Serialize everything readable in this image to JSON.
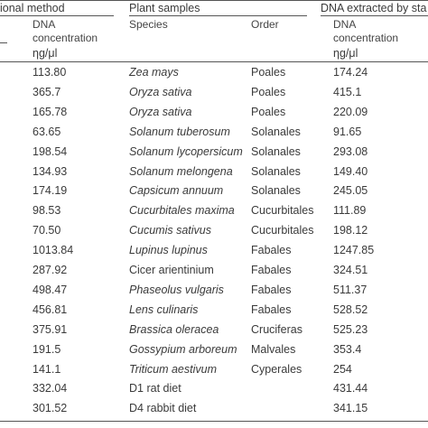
{
  "table": {
    "group_headers": {
      "conventional": "ional method",
      "plant": "Plant samples",
      "stabilized": "DNA extracted by sta"
    },
    "col_headers": {
      "conc_left_line1": "DNA",
      "conc_left_line2": "concentration",
      "species": "Species",
      "order": "Order",
      "conc_right_line1": "DNA",
      "conc_right_line2": "concentration"
    },
    "units": {
      "left": "ηg/μl",
      "right": "ηg/μl"
    },
    "rows": [
      {
        "conc_a": "113.80",
        "species": "Zea mays",
        "italic": true,
        "order": "Poales",
        "conc_b": "174.24"
      },
      {
        "conc_a": "365.7",
        "species": "Oryza sativa",
        "italic": true,
        "order": "Poales",
        "conc_b": "415.1"
      },
      {
        "conc_a": "165.78",
        "species": "Oryza sativa",
        "italic": true,
        "order": "Poales",
        "conc_b": "220.09"
      },
      {
        "conc_a": "63.65",
        "species": "Solanum tuberosum",
        "italic": true,
        "order": "Solanales",
        "conc_b": "91.65"
      },
      {
        "conc_a": "198.54",
        "species": "Solanum lycopersicum",
        "italic": true,
        "order": "Solanales",
        "conc_b": "293.08"
      },
      {
        "conc_a": "134.93",
        "species": "Solanum melongena",
        "italic": true,
        "order": "Solanales",
        "conc_b": "149.40"
      },
      {
        "conc_a": "174.19",
        "species": "Capsicum annuum",
        "italic": true,
        "order": "Solanales",
        "conc_b": "245.05"
      },
      {
        "conc_a": "98.53",
        "species": "Cucurbitales maxima",
        "italic": true,
        "order": "Cucurbitales",
        "conc_b": "111.89"
      },
      {
        "conc_a": "70.50",
        "species": "Cucumis sativus",
        "italic": true,
        "order": "Cucurbitales",
        "conc_b": "198.12"
      },
      {
        "conc_a": "1013.84",
        "species": "Lupinus lupinus",
        "italic": true,
        "order": "Fabales",
        "conc_b": "1247.85"
      },
      {
        "conc_a": "287.92",
        "species": "Cicer arientinium",
        "italic": false,
        "order": "Fabales",
        "conc_b": "324.51"
      },
      {
        "conc_a": "498.47",
        "species": "Phaseolus vulgaris",
        "italic": true,
        "order": "Fabales",
        "conc_b": "511.37"
      },
      {
        "conc_a": "456.81",
        "species": "Lens culinaris",
        "italic": true,
        "order": "Fabales",
        "conc_b": "528.52"
      },
      {
        "conc_a": "375.91",
        "species": "Brassica oleracea",
        "italic": true,
        "order": "Cruciferas",
        "conc_b": "525.23"
      },
      {
        "conc_a": "191.5",
        "species": "Gossypium arboreum",
        "italic": true,
        "order": "Malvales",
        "conc_b": "353.4"
      },
      {
        "conc_a": "141.1",
        "species": "Triticum aestivum",
        "italic": true,
        "order": "Cyperales",
        "conc_b": "254"
      },
      {
        "conc_a": "332.04",
        "species": "D1 rat diet",
        "italic": false,
        "order": "",
        "conc_b": "431.44"
      },
      {
        "conc_a": "301.52",
        "species": "D4 rabbit diet",
        "italic": false,
        "order": "",
        "conc_b": "341.15"
      }
    ]
  }
}
